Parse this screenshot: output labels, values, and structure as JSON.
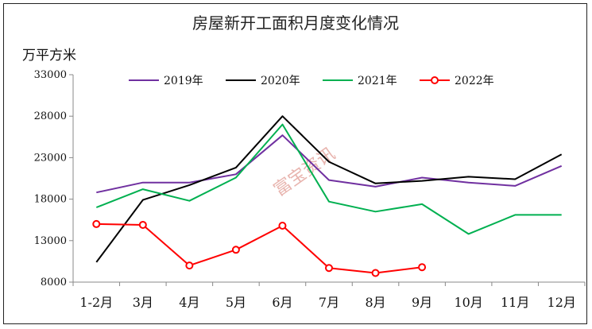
{
  "chart_data": {
    "type": "line",
    "title": "房屋新开工面积月度变化情况",
    "ylabel": "万平方米",
    "ylim": [
      8000,
      33000
    ],
    "yticks": [
      8000,
      13000,
      18000,
      23000,
      28000,
      33000
    ],
    "categories": [
      "1-2月",
      "3月",
      "4月",
      "5月",
      "6月",
      "7月",
      "8月",
      "9月",
      "10月",
      "11月",
      "12月"
    ],
    "legend_position": "top",
    "watermark": "富宝资讯",
    "series": [
      {
        "name": "2019年",
        "color": "#7030a0",
        "marker": "none",
        "values": [
          18800,
          20000,
          20000,
          21000,
          25700,
          20300,
          19500,
          20600,
          20000,
          19600,
          22000
        ]
      },
      {
        "name": "2020年",
        "color": "#000000",
        "marker": "none",
        "values": [
          10400,
          17900,
          19700,
          21800,
          28000,
          22500,
          19900,
          20200,
          20700,
          20400,
          23400
        ]
      },
      {
        "name": "2021年",
        "color": "#00b050",
        "marker": "none",
        "values": [
          17000,
          19200,
          17800,
          20600,
          27000,
          17700,
          16500,
          17400,
          13800,
          16100,
          16100
        ]
      },
      {
        "name": "2022年",
        "color": "#ff0000",
        "marker": "circle",
        "values": [
          15000,
          14900,
          10000,
          11900,
          14800,
          9700,
          9100,
          9800,
          null,
          null,
          null
        ]
      }
    ]
  }
}
